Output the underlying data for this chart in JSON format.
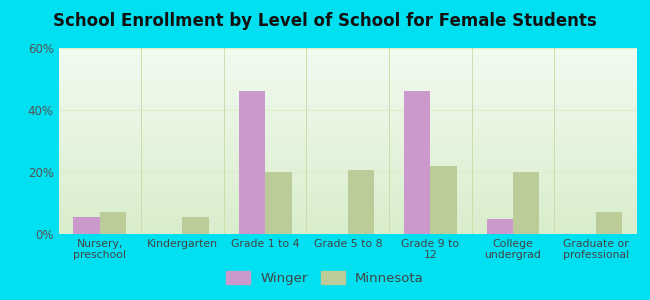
{
  "title": "School Enrollment by Level of School for Female Students",
  "categories": [
    "Nursery,\npreschool",
    "Kindergarten",
    "Grade 1 to 4",
    "Grade 5 to 8",
    "Grade 9 to\n12",
    "College\nundergrad",
    "Graduate or\nprofessional"
  ],
  "winger": [
    5.5,
    0,
    46,
    0,
    46,
    5,
    0
  ],
  "minnesota": [
    7,
    5.5,
    20,
    20.5,
    22,
    20,
    7
  ],
  "winger_color": "#cc99cc",
  "minnesota_color": "#bbcc99",
  "background_outer": "#00e0f0",
  "ylim": [
    0,
    60
  ],
  "yticks": [
    0,
    20,
    40,
    60
  ],
  "ytick_labels": [
    "0%",
    "20%",
    "40%",
    "60%"
  ],
  "title_fontsize": 12,
  "legend_labels": [
    "Winger",
    "Minnesota"
  ],
  "bar_width": 0.32,
  "grid_color": "#ddeecc",
  "grad_top": "#f2faf0",
  "grad_bottom": "#d8edcc"
}
